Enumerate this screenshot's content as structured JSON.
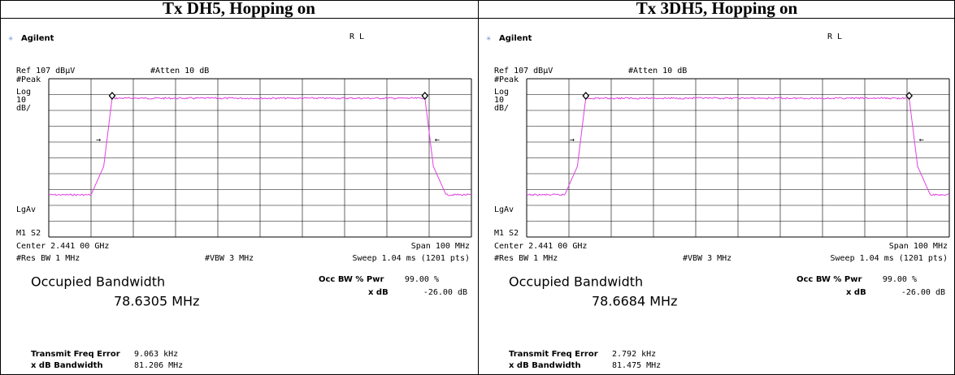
{
  "panels": [
    {
      "title": "Tx DH5, Hopping on",
      "brand": "Agilent",
      "mode": "R L",
      "ref": "Ref 107 dBµV",
      "atten": "#Atten 10 dB",
      "peak": "#Peak",
      "log": "Log",
      "scale": "10",
      "unit": "dB/",
      "lgav": "LgAv",
      "marker": "M1 S2",
      "center": "Center 2.441 00 GHz",
      "span": "Span 100 MHz",
      "rbw": "#Res BW 1 MHz",
      "vbw": "#VBW 3 MHz",
      "sweep": "Sweep 1.04 ms (1201 pts)",
      "occ_title": "Occupied Bandwidth",
      "occ_value": "78.6305 MHz",
      "occ_pwr_label": "Occ BW % Pwr",
      "occ_pwr": "99.00 %",
      "xdb_label": "x dB",
      "xdb": "-26.00 dB",
      "tfe_label": "Transmit Freq Error",
      "tfe": "9.063 kHz",
      "xbw_label": "x dB Bandwidth",
      "xbw": "81.206 MHz"
    },
    {
      "title": "Tx 3DH5, Hopping on",
      "brand": "Agilent",
      "mode": "R L",
      "ref": "Ref 107 dBµV",
      "atten": "#Atten 10 dB",
      "peak": "#Peak",
      "log": "Log",
      "scale": "10",
      "unit": "dB/",
      "lgav": "LgAv",
      "marker": "M1 S2",
      "center": "Center 2.441 00 GHz",
      "span": "Span 100 MHz",
      "rbw": "#Res BW 1 MHz",
      "vbw": "#VBW 3 MHz",
      "sweep": "Sweep 1.04 ms (1201 pts)",
      "occ_title": "Occupied Bandwidth",
      "occ_value": "78.6684 MHz",
      "occ_pwr_label": "Occ BW % Pwr",
      "occ_pwr": "99.00 %",
      "xdb_label": "x dB",
      "xdb": "-26.00 dB",
      "tfe_label": "Transmit Freq Error",
      "tfe": "2.792 kHz",
      "xbw_label": "x dB Bandwidth",
      "xbw": "81.475 MHz"
    }
  ]
}
